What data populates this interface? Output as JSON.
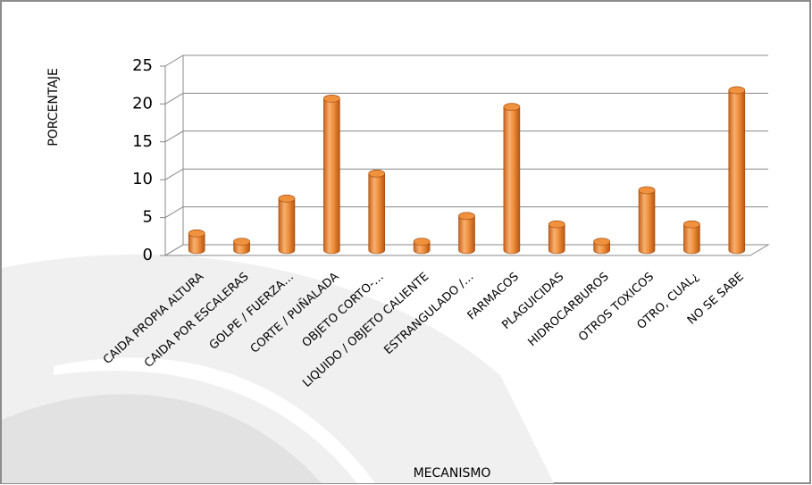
{
  "chart_data": {
    "type": "bar",
    "x_label": "MECANISMO",
    "y_label": "PORCENTAJE",
    "categories": [
      "CAIDA PROPIA ALTURA",
      "CAIDA POR ESCALERAS",
      "GOLPE / FUERZA…",
      "CORTE / PUÑALADA",
      "OBJETO CORTO-…",
      "LIQUIDO / OBJETO CALIENTE",
      "ESTRANGULADO /…",
      "FARMACOS",
      "PLAGUICIDAS",
      "HIDROCARBUROS",
      "OTROS TOXICOS",
      "OTRO, CUAL¿",
      "NO SE SABE"
    ],
    "values": [
      2.2,
      1.1,
      6.8,
      20,
      10.1,
      1.1,
      4.5,
      18.9,
      3.4,
      1.1,
      7.9,
      3.4,
      21.1
    ],
    "color": "#f0913e",
    "ylim": [
      0,
      25
    ],
    "yticks": [
      0,
      5,
      10,
      15,
      20,
      25
    ],
    "grid": true
  }
}
